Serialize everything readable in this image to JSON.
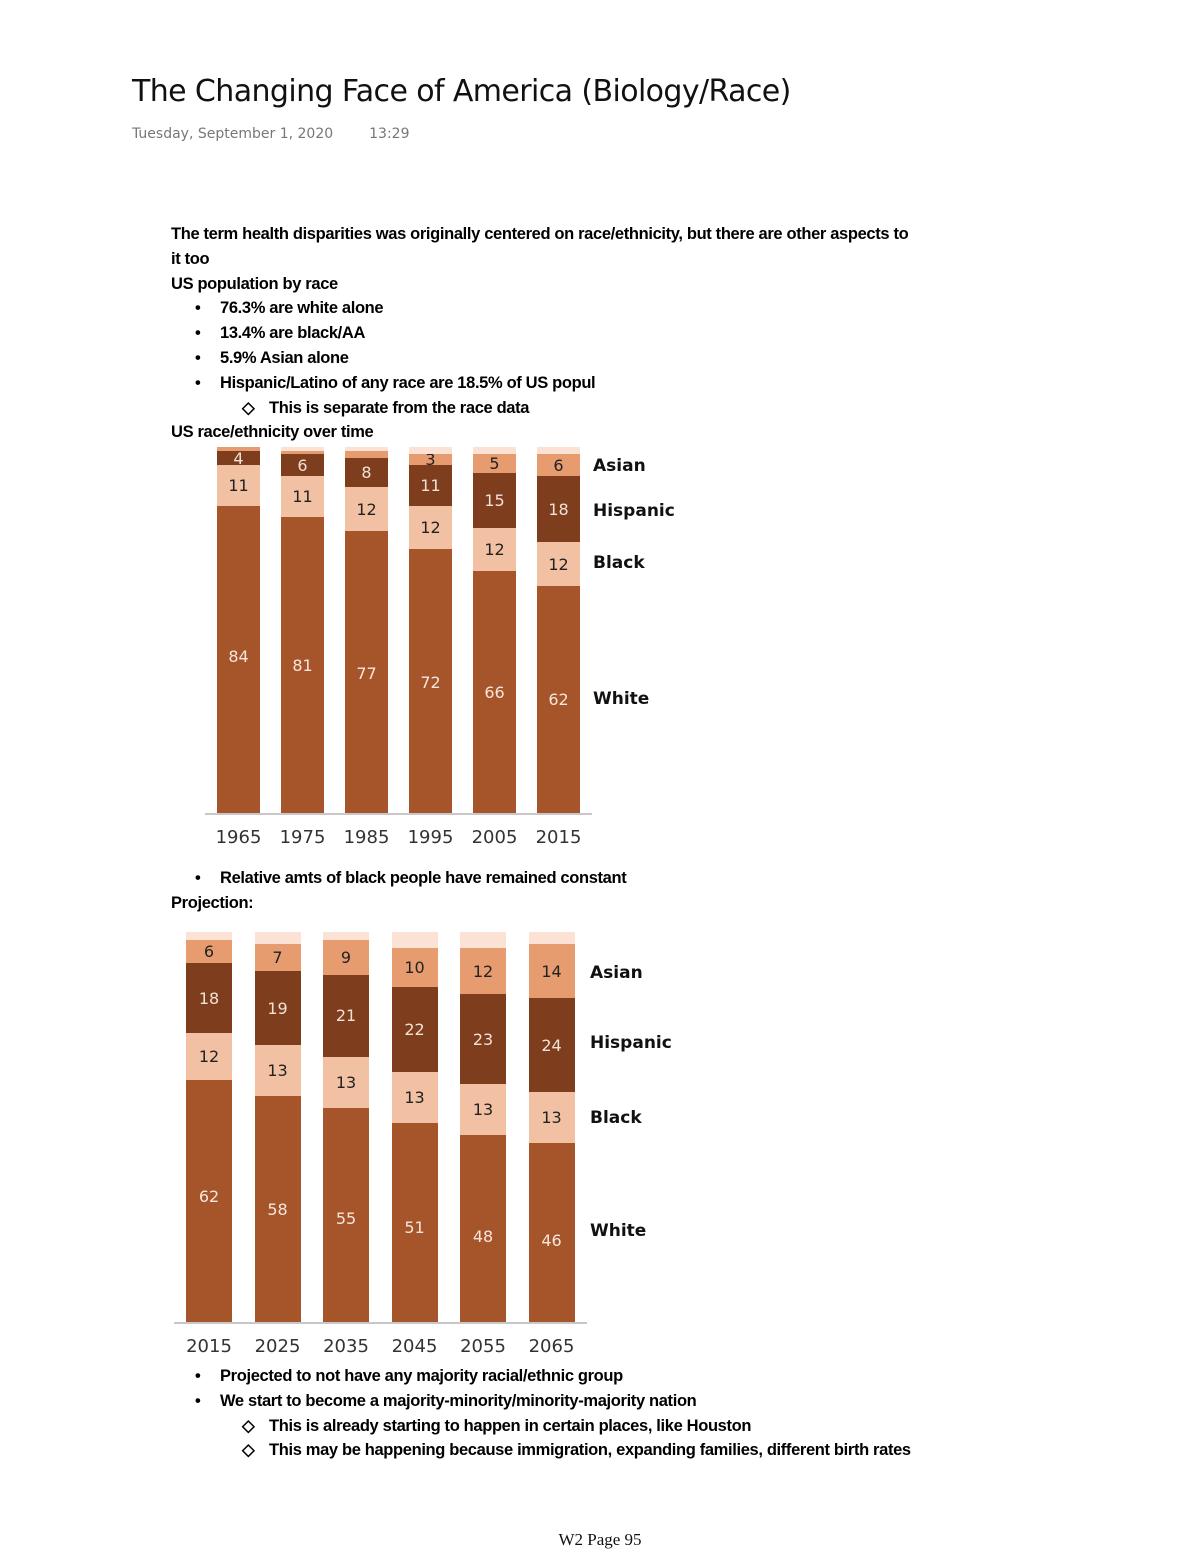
{
  "page": {
    "title": "The Changing Face of America (Biology/Race)",
    "date": "Tuesday, September 1, 2020",
    "time": "13:29",
    "footer": "W2 Page 95"
  },
  "notes_top": {
    "intro_line1": "The term health disparities was originally centered on race/ethnicity, but there are other aspects to",
    "intro_line2": "it too",
    "heading_population": "US population by race",
    "population_bullets": [
      "76.3% are white alone",
      "13.4% are black/AA",
      "5.9% Asian alone",
      "Hispanic/Latino of any race are 18.5% of US popul"
    ],
    "population_sub_bullet": "This is separate from the race data",
    "heading_over_time": "US race/ethnicity over time"
  },
  "notes_middle": {
    "bullet": "Relative amts of black people have remained constant",
    "heading_projection": "Projection:"
  },
  "notes_bottom": {
    "bullets": [
      "Projected to not have any majority racial/ethnic group",
      "We start to become a majority-minority/minority-majority nation"
    ],
    "sub_bullets": [
      "This is already starting to happen in certain places, like Houston",
      "This may be happening because immigration, expanding families, different birth rates"
    ]
  },
  "colors": {
    "white": "#A6542A",
    "black": "#F2C0A2",
    "hispanic": "#7E3D1C",
    "asian": "#E79C70",
    "other": "#FBE2D4"
  },
  "chart_data": [
    {
      "type": "bar",
      "stacked": true,
      "title": "US race/ethnicity over time",
      "unit": "%",
      "categories": [
        "1965",
        "1975",
        "1985",
        "1995",
        "2005",
        "2015"
      ],
      "series": [
        {
          "name": "White",
          "values": [
            84,
            81,
            77,
            72,
            66,
            62
          ]
        },
        {
          "name": "Black",
          "values": [
            11,
            11,
            12,
            12,
            12,
            12
          ]
        },
        {
          "name": "Hispanic",
          "values": [
            4,
            6,
            8,
            11,
            15,
            18
          ]
        },
        {
          "name": "Asian",
          "values": [
            1,
            1,
            2,
            3,
            5,
            6
          ]
        },
        {
          "name": "Other",
          "values": [
            0,
            1,
            1,
            2,
            2,
            2
          ]
        }
      ],
      "segment_labels_shown": {
        "White": [
          "84",
          "81",
          "77",
          "72",
          "66",
          "62"
        ],
        "Black": [
          "11",
          "11",
          "12",
          "12",
          "12",
          "12"
        ],
        "Hispanic": [
          "4",
          "6",
          "8",
          "11",
          "15",
          "18"
        ],
        "Asian": [
          "",
          "",
          "",
          "3",
          "5",
          "6"
        ]
      },
      "legend": [
        "Asian",
        "Hispanic",
        "Black",
        "White"
      ],
      "legend_position": "right",
      "xlabel": "",
      "ylabel": "",
      "ylim": [
        0,
        100
      ],
      "grid": false
    },
    {
      "type": "bar",
      "stacked": true,
      "title": "Projection",
      "unit": "%",
      "categories": [
        "2015",
        "2025",
        "2035",
        "2045",
        "2055",
        "2065"
      ],
      "series": [
        {
          "name": "White",
          "values": [
            62,
            58,
            55,
            51,
            48,
            46
          ]
        },
        {
          "name": "Black",
          "values": [
            12,
            13,
            13,
            13,
            13,
            13
          ]
        },
        {
          "name": "Hispanic",
          "values": [
            18,
            19,
            21,
            22,
            23,
            24
          ]
        },
        {
          "name": "Asian",
          "values": [
            6,
            7,
            9,
            10,
            12,
            14
          ]
        },
        {
          "name": "Other",
          "values": [
            2,
            3,
            2,
            4,
            4,
            3
          ]
        }
      ],
      "segment_labels_shown": {
        "White": [
          "62",
          "58",
          "55",
          "51",
          "48",
          "46"
        ],
        "Black": [
          "12",
          "13",
          "13",
          "13",
          "13",
          "13"
        ],
        "Hispanic": [
          "18",
          "19",
          "21",
          "22",
          "23",
          "24"
        ],
        "Asian": [
          "6",
          "7",
          "9",
          "10",
          "12",
          "14"
        ]
      },
      "legend": [
        "Asian",
        "Hispanic",
        "Black",
        "White"
      ],
      "legend_position": "right",
      "xlabel": "",
      "ylabel": "",
      "ylim": [
        0,
        100
      ],
      "grid": false
    }
  ]
}
